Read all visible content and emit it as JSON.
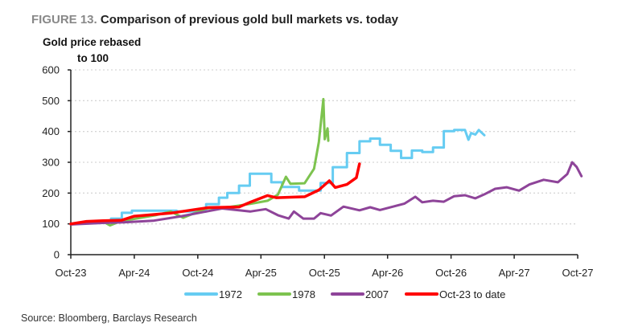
{
  "title": {
    "figure_label": "FIGURE 13.",
    "text": "Comparison of previous gold bull markets vs. today"
  },
  "source": "Source: Bloomberg, Barclays Research",
  "chart_data": {
    "type": "line",
    "title": "Comparison of previous gold bull markets vs. today",
    "ylabel": "Gold price rebased to 100",
    "ylabel_lines": [
      "Gold price rebased",
      "to 100"
    ],
    "xlabel": "",
    "ylim": [
      0,
      600
    ],
    "yticks": [
      "0",
      "100",
      "200",
      "300",
      "400",
      "500",
      "600"
    ],
    "xlim": [
      "2023-10-01",
      "2027-10-01"
    ],
    "xticks": [
      {
        "date": "2023-10-01",
        "label": "Oct-23"
      },
      {
        "date": "2024-04-01",
        "label": "Apr-24"
      },
      {
        "date": "2024-10-01",
        "label": "Oct-24"
      },
      {
        "date": "2025-04-01",
        "label": "Apr-25"
      },
      {
        "date": "2025-10-01",
        "label": "Oct-25"
      },
      {
        "date": "2026-04-01",
        "label": "Apr-26"
      },
      {
        "date": "2026-10-01",
        "label": "Oct-26"
      },
      {
        "date": "2027-04-01",
        "label": "Apr-27"
      },
      {
        "date": "2027-10-01",
        "label": "Oct-27"
      }
    ],
    "grid": "horizontal dotted",
    "legend_position": "bottom",
    "series": [
      {
        "name": "1972",
        "color": "#66CCF2",
        "points": [
          [
            "2024-01-25",
            117
          ],
          [
            "2024-02-25",
            117
          ],
          [
            "2024-02-25",
            136
          ],
          [
            "2024-03-25",
            136
          ],
          [
            "2024-03-25",
            143
          ],
          [
            "2024-08-01",
            143
          ],
          [
            "2024-08-01",
            140
          ],
          [
            "2024-10-25",
            140
          ],
          [
            "2024-10-25",
            164
          ],
          [
            "2024-12-01",
            164
          ],
          [
            "2024-12-01",
            185
          ],
          [
            "2024-12-25",
            185
          ],
          [
            "2024-12-25",
            200
          ],
          [
            "2025-01-28",
            200
          ],
          [
            "2025-01-28",
            224
          ],
          [
            "2025-02-28",
            224
          ],
          [
            "2025-02-28",
            263
          ],
          [
            "2025-05-01",
            263
          ],
          [
            "2025-05-01",
            235
          ],
          [
            "2025-06-01",
            235
          ],
          [
            "2025-06-01",
            220
          ],
          [
            "2025-07-20",
            220
          ],
          [
            "2025-07-20",
            208
          ],
          [
            "2025-09-20",
            208
          ],
          [
            "2025-09-20",
            233
          ],
          [
            "2025-10-25",
            233
          ],
          [
            "2025-10-25",
            284
          ],
          [
            "2025-12-05",
            284
          ],
          [
            "2025-12-05",
            330
          ],
          [
            "2026-01-10",
            330
          ],
          [
            "2026-01-10",
            368
          ],
          [
            "2026-02-10",
            368
          ],
          [
            "2026-02-10",
            377
          ],
          [
            "2026-03-10",
            377
          ],
          [
            "2026-03-10",
            357
          ],
          [
            "2026-04-10",
            357
          ],
          [
            "2026-04-10",
            337
          ],
          [
            "2026-05-10",
            337
          ],
          [
            "2026-05-10",
            314
          ],
          [
            "2026-06-10",
            314
          ],
          [
            "2026-06-10",
            338
          ],
          [
            "2026-07-10",
            338
          ],
          [
            "2026-07-10",
            333
          ],
          [
            "2026-08-10",
            333
          ],
          [
            "2026-08-10",
            348
          ],
          [
            "2026-09-10",
            348
          ],
          [
            "2026-09-10",
            401
          ],
          [
            "2026-10-10",
            401
          ],
          [
            "2026-10-10",
            405
          ],
          [
            "2026-11-10",
            405
          ],
          [
            "2026-11-20",
            373
          ],
          [
            "2026-11-28",
            395
          ],
          [
            "2026-12-10",
            390
          ],
          [
            "2026-12-20",
            405
          ],
          [
            "2027-01-05",
            388
          ]
        ]
      },
      {
        "name": "1978",
        "color": "#7DC34F",
        "points": [
          [
            "2023-10-01",
            98
          ],
          [
            "2023-11-15",
            106
          ],
          [
            "2024-01-01",
            108
          ],
          [
            "2024-01-22",
            95
          ],
          [
            "2024-02-20",
            108
          ],
          [
            "2024-04-10",
            118
          ],
          [
            "2024-06-01",
            128
          ],
          [
            "2024-07-15",
            140
          ],
          [
            "2024-08-20",
            120
          ],
          [
            "2024-10-25",
            150
          ],
          [
            "2025-01-01",
            155
          ],
          [
            "2025-03-01",
            165
          ],
          [
            "2025-04-20",
            175
          ],
          [
            "2025-05-20",
            195
          ],
          [
            "2025-06-12",
            253
          ],
          [
            "2025-06-25",
            230
          ],
          [
            "2025-08-05",
            232
          ],
          [
            "2025-09-01",
            279
          ],
          [
            "2025-09-15",
            366
          ],
          [
            "2025-09-28",
            505
          ],
          [
            "2025-10-02",
            375
          ],
          [
            "2025-10-10",
            410
          ],
          [
            "2025-10-12",
            370
          ]
        ]
      },
      {
        "name": "2007",
        "color": "#8E4499",
        "points": [
          [
            "2023-10-01",
            98
          ],
          [
            "2024-01-01",
            103
          ],
          [
            "2024-03-01",
            105
          ],
          [
            "2024-05-25",
            110
          ],
          [
            "2024-08-15",
            125
          ],
          [
            "2024-10-25",
            140
          ],
          [
            "2024-12-10",
            150
          ],
          [
            "2025-03-01",
            140
          ],
          [
            "2025-04-15",
            148
          ],
          [
            "2025-05-20",
            128
          ],
          [
            "2025-06-20",
            117
          ],
          [
            "2025-07-05",
            140
          ],
          [
            "2025-08-01",
            117
          ],
          [
            "2025-09-01",
            117
          ],
          [
            "2025-09-20",
            135
          ],
          [
            "2025-10-20",
            127
          ],
          [
            "2025-11-25",
            156
          ],
          [
            "2026-01-10",
            144
          ],
          [
            "2026-02-10",
            154
          ],
          [
            "2026-03-10",
            145
          ],
          [
            "2026-04-20",
            157
          ],
          [
            "2026-05-20",
            166
          ],
          [
            "2026-06-20",
            188
          ],
          [
            "2026-07-10",
            170
          ],
          [
            "2026-08-10",
            175
          ],
          [
            "2026-09-10",
            172
          ],
          [
            "2026-10-10",
            190
          ],
          [
            "2026-11-10",
            193
          ],
          [
            "2026-12-10",
            183
          ],
          [
            "2027-01-05",
            196
          ],
          [
            "2027-02-05",
            214
          ],
          [
            "2027-03-10",
            219
          ],
          [
            "2027-04-15",
            208
          ],
          [
            "2027-05-15",
            228
          ],
          [
            "2027-06-25",
            243
          ],
          [
            "2027-08-05",
            235
          ],
          [
            "2027-09-01",
            262
          ],
          [
            "2027-09-15",
            300
          ],
          [
            "2027-09-28",
            285
          ],
          [
            "2027-10-12",
            255
          ]
        ]
      },
      {
        "name": "Oct-23 to date",
        "color": "#FF0000",
        "points": [
          [
            "2023-10-01",
            100
          ],
          [
            "2023-11-15",
            108
          ],
          [
            "2024-01-01",
            110
          ],
          [
            "2024-02-25",
            112
          ],
          [
            "2024-04-01",
            125
          ],
          [
            "2024-07-15",
            135
          ],
          [
            "2024-10-01",
            148
          ],
          [
            "2024-11-01",
            153
          ],
          [
            "2025-01-28",
            155
          ],
          [
            "2025-03-01",
            170
          ],
          [
            "2025-04-20",
            192
          ],
          [
            "2025-05-15",
            185
          ],
          [
            "2025-08-05",
            188
          ],
          [
            "2025-09-15",
            210
          ],
          [
            "2025-10-15",
            240
          ],
          [
            "2025-11-01",
            218
          ],
          [
            "2025-12-05",
            228
          ],
          [
            "2026-01-01",
            250
          ],
          [
            "2026-01-10",
            295
          ]
        ]
      }
    ]
  }
}
